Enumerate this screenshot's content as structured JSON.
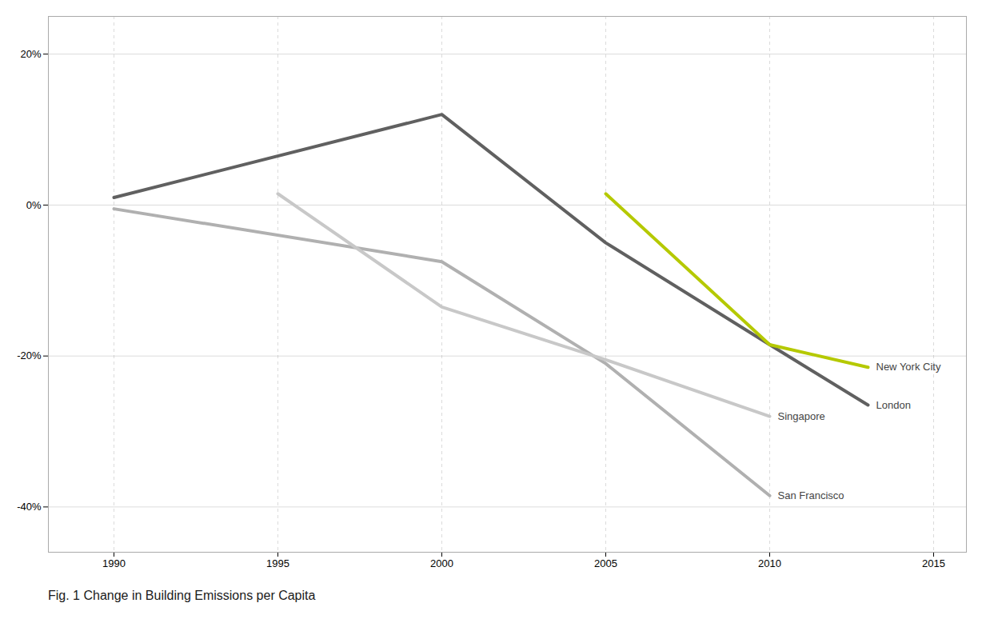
{
  "chart_data": {
    "type": "line",
    "title": "Fig. 1 Change in Building Emissions per Capita",
    "xlim": [
      1988,
      2016
    ],
    "ylim": [
      -0.46,
      0.25
    ],
    "xticks": [
      1990,
      1995,
      2000,
      2005,
      2010,
      2015
    ],
    "yticks": [
      {
        "value": 0.2,
        "label": "20%"
      },
      {
        "value": 0.0,
        "label": "0%"
      },
      {
        "value": -0.2,
        "label": "-20%"
      },
      {
        "value": -0.4,
        "label": "-40%"
      }
    ],
    "grid": true,
    "series": [
      {
        "name": "London",
        "color": "#606060",
        "x": [
          1990,
          2000,
          2005,
          2010,
          2013
        ],
        "values": [
          0.01,
          0.12,
          -0.05,
          -0.185,
          -0.265
        ]
      },
      {
        "name": "San Francisco",
        "color": "#b0b0b0",
        "x": [
          1990,
          2000,
          2005,
          2010
        ],
        "values": [
          -0.005,
          -0.075,
          -0.21,
          -0.385
        ]
      },
      {
        "name": "Singapore",
        "color": "#c8c8c8",
        "x": [
          1995,
          2000,
          2005,
          2010
        ],
        "values": [
          0.015,
          -0.135,
          -0.205,
          -0.28
        ]
      },
      {
        "name": "New York City",
        "color": "#b5c900",
        "x": [
          2005,
          2010,
          2013
        ],
        "values": [
          0.015,
          -0.185,
          -0.215
        ]
      }
    ]
  }
}
